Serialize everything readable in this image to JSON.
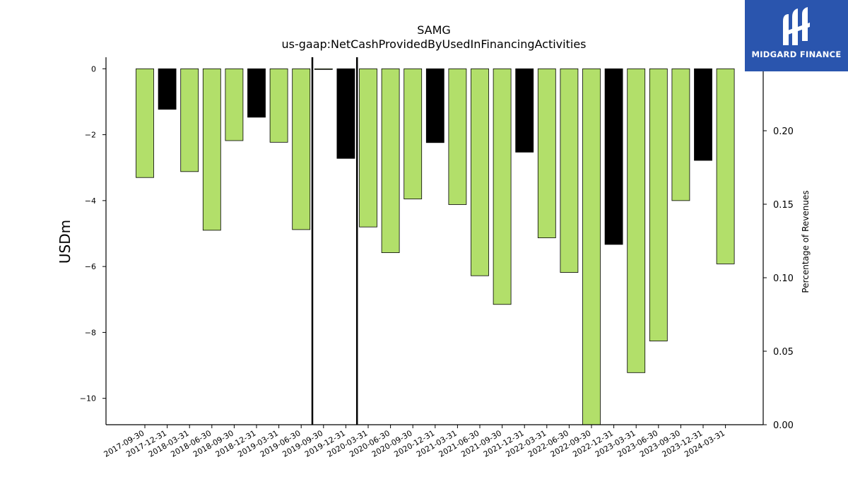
{
  "chart_data": {
    "type": "bar",
    "title": "SAMG",
    "subtitle": "us-gaap:NetCashProvidedByUsedInFinancingActivities",
    "ylabel": "USDm",
    "y2label": "Percentage of Revenues",
    "ylim": [
      -10.8,
      0.35
    ],
    "y2lim": [
      0.0,
      0.25
    ],
    "yticks": [
      0,
      -2,
      -4,
      -6,
      -8,
      -10
    ],
    "y2ticks": [
      0.0,
      0.05,
      0.1,
      0.15,
      0.2
    ],
    "y2tick_labels": [
      "0.00",
      "0.05",
      "0.10",
      "0.15",
      "0.20"
    ],
    "grid": false,
    "legend": "none",
    "colors": {
      "q": "#b2df6a",
      "annual": "#000000",
      "edge": "#000000"
    },
    "categories": [
      "2017-09-30",
      "2017-12-31",
      "2018-03-31",
      "2018-06-30",
      "2018-09-30",
      "2018-12-31",
      "2019-03-31",
      "2019-06-30",
      "2019-09-30",
      "2019-12-31",
      "2020-03-31",
      "2020-06-30",
      "2020-09-30",
      "2020-12-31",
      "2021-03-31",
      "2021-06-30",
      "2021-09-30",
      "2021-12-31",
      "2022-03-31",
      "2022-06-30",
      "2022-09-30",
      "2022-12-31",
      "2023-03-31",
      "2023-06-30",
      "2023-09-30",
      "2023-12-31",
      "2024-03-31"
    ],
    "values": [
      -3.3,
      -1.23,
      -3.12,
      -4.9,
      -2.18,
      -1.47,
      -2.23,
      -4.88,
      -0.01,
      -2.72,
      -4.8,
      -5.58,
      -3.95,
      -2.24,
      -4.12,
      -6.28,
      -7.15,
      -2.53,
      -5.13,
      -6.18,
      -10.8,
      -5.33,
      -9.22,
      -8.26,
      -4.0,
      -2.78,
      -5.92
    ],
    "highlight": [
      false,
      true,
      false,
      false,
      false,
      true,
      false,
      false,
      false,
      true,
      false,
      false,
      false,
      true,
      false,
      false,
      false,
      true,
      false,
      false,
      false,
      true,
      false,
      false,
      false,
      true,
      false
    ],
    "vlines": [
      "2019-06-30",
      "2019-12-31"
    ]
  },
  "logo": {
    "text": "MIDGARD FINANCE"
  }
}
